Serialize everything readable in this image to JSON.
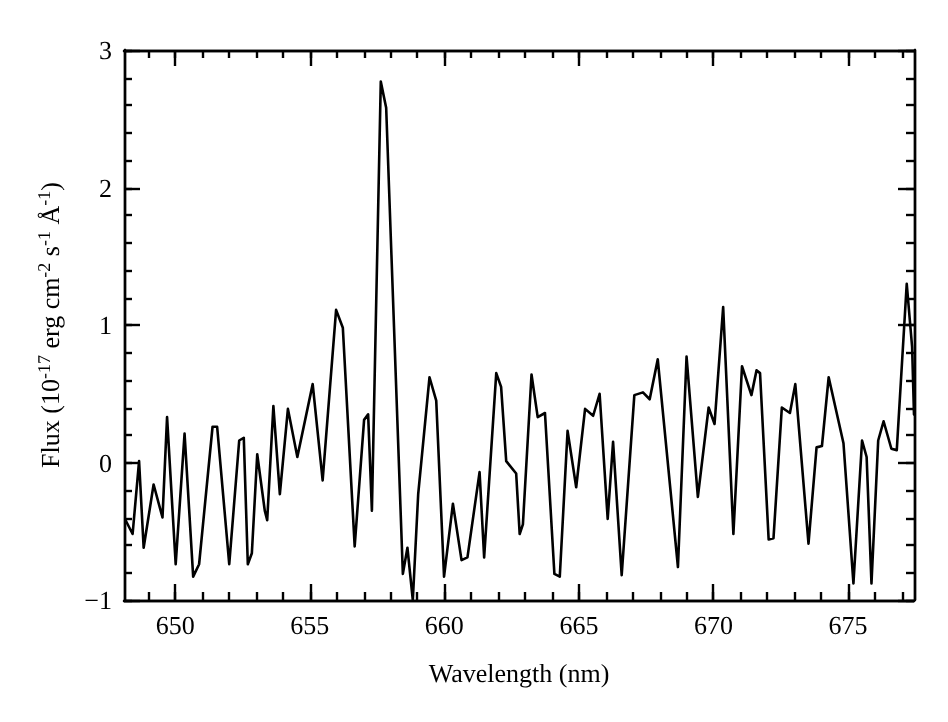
{
  "chart_data": {
    "type": "line",
    "xlabel": "Wavelength (nm)",
    "ylabel": "Flux (10$^{-17}$ erg cm$^{-2}$ s$^{-1}$ Å$^{-1}$)",
    "x": [
      648.16,
      648.42,
      648.66,
      648.83,
      649.2,
      649.53,
      649.7,
      650.02,
      650.35,
      650.67,
      650.89,
      651.39,
      651.56,
      652.01,
      652.38,
      652.55,
      652.7,
      652.85,
      653.05,
      653.33,
      653.42,
      653.65,
      653.89,
      654.19,
      654.54,
      655.11,
      655.48,
      655.98,
      656.23,
      656.67,
      657.02,
      657.17,
      657.31,
      657.64,
      657.84,
      658.46,
      658.63,
      658.83,
      659.03,
      659.45,
      659.7,
      659.99,
      660.32,
      660.64,
      660.86,
      661.31,
      661.48,
      661.93,
      662.11,
      662.3,
      662.67,
      662.8,
      662.92,
      663.24,
      663.47,
      663.74,
      664.09,
      664.29,
      664.58,
      664.9,
      665.23,
      665.53,
      665.77,
      666.07,
      666.27,
      666.59,
      667.06,
      667.38,
      667.63,
      667.93,
      668.68,
      669.0,
      669.42,
      669.82,
      670.04,
      670.36,
      670.74,
      671.06,
      671.41,
      671.6,
      671.73,
      672.05,
      672.23,
      672.54,
      672.84,
      673.04,
      673.53,
      673.83,
      674.03,
      674.28,
      674.83,
      675.2,
      675.52,
      675.69,
      675.87,
      676.12,
      676.32,
      676.61,
      676.81,
      677.18,
      677.38,
      677.45
    ],
    "series": [
      {
        "color": "#000000",
        "values": [
          -0.42,
          -0.52,
          0.01,
          -0.62,
          -0.16,
          -0.4,
          0.33,
          -0.74,
          0.21,
          -0.83,
          -0.74,
          0.26,
          0.26,
          -0.74,
          0.16,
          0.18,
          -0.74,
          -0.66,
          0.06,
          -0.35,
          -0.42,
          0.41,
          -0.23,
          0.39,
          0.04,
          0.57,
          -0.13,
          1.11,
          0.98,
          -0.61,
          0.31,
          0.35,
          -0.35,
          2.77,
          2.58,
          -0.81,
          -0.62,
          -1.0,
          -0.23,
          0.62,
          0.45,
          -0.83,
          -0.3,
          -0.71,
          -0.69,
          -0.07,
          -0.69,
          0.65,
          0.55,
          0.01,
          -0.08,
          -0.52,
          -0.45,
          0.64,
          0.33,
          0.36,
          -0.81,
          -0.83,
          0.23,
          -0.18,
          0.39,
          0.34,
          0.5,
          -0.41,
          0.15,
          -0.82,
          0.49,
          0.51,
          0.46,
          0.75,
          -0.76,
          0.77,
          -0.25,
          0.4,
          0.28,
          1.13,
          -0.52,
          0.7,
          0.49,
          0.67,
          0.65,
          -0.56,
          -0.55,
          0.4,
          0.36,
          0.57,
          -0.59,
          0.11,
          0.12,
          0.62,
          0.14,
          -0.88,
          0.16,
          0.04,
          -0.88,
          0.16,
          0.3,
          0.1,
          0.09,
          1.3,
          0.84,
          0.35
        ]
      }
    ],
    "xlim": [
      648.1,
      677.45
    ],
    "ylim": [
      -1,
      3
    ],
    "xticks": [
      {
        "value": 649,
        "label": null
      },
      650,
      {
        "value": 651,
        "label": null
      },
      {
        "value": 652,
        "label": null
      },
      {
        "value": 653,
        "label": null
      },
      {
        "value": 654,
        "label": null
      },
      655,
      {
        "value": 656,
        "label": null
      },
      {
        "value": 657,
        "label": null
      },
      {
        "value": 658,
        "label": null
      },
      {
        "value": 659,
        "label": null
      },
      660,
      {
        "value": 661,
        "label": null
      },
      {
        "value": 662,
        "label": null
      },
      {
        "value": 663,
        "label": null
      },
      {
        "value": 664,
        "label": null
      },
      665,
      {
        "value": 666,
        "label": null
      },
      {
        "value": 667,
        "label": null
      },
      {
        "value": 668,
        "label": null
      },
      {
        "value": 669,
        "label": null
      },
      670,
      {
        "value": 671,
        "label": null
      },
      {
        "value": 672,
        "label": null
      },
      {
        "value": 673,
        "label": null
      },
      {
        "value": 674,
        "label": null
      },
      675,
      {
        "value": 676,
        "label": null
      },
      {
        "value": 677,
        "label": null
      }
    ],
    "yticks": [
      {
        "value": -1,
        "label": "−1"
      },
      {
        "value": -0.8,
        "label": null
      },
      {
        "value": -0.6,
        "label": null
      },
      {
        "value": -0.4,
        "label": null
      },
      {
        "value": -0.2,
        "label": null
      },
      0,
      {
        "value": 0.2,
        "label": null
      },
      {
        "value": 0.4,
        "label": null
      },
      {
        "value": 0.6,
        "label": null
      },
      {
        "value": 0.8,
        "label": null
      },
      1,
      {
        "value": 1.2,
        "label": null
      },
      {
        "value": 1.4,
        "label": null
      },
      {
        "value": 1.6,
        "label": null
      },
      {
        "value": 1.8,
        "label": null
      },
      2,
      {
        "value": 2.2,
        "label": null
      },
      {
        "value": 2.4,
        "label": null
      },
      {
        "value": 2.6,
        "label": null
      },
      {
        "value": 2.8,
        "label": null
      },
      3
    ],
    "grid": false,
    "marker": "none",
    "line_style": "solid"
  }
}
